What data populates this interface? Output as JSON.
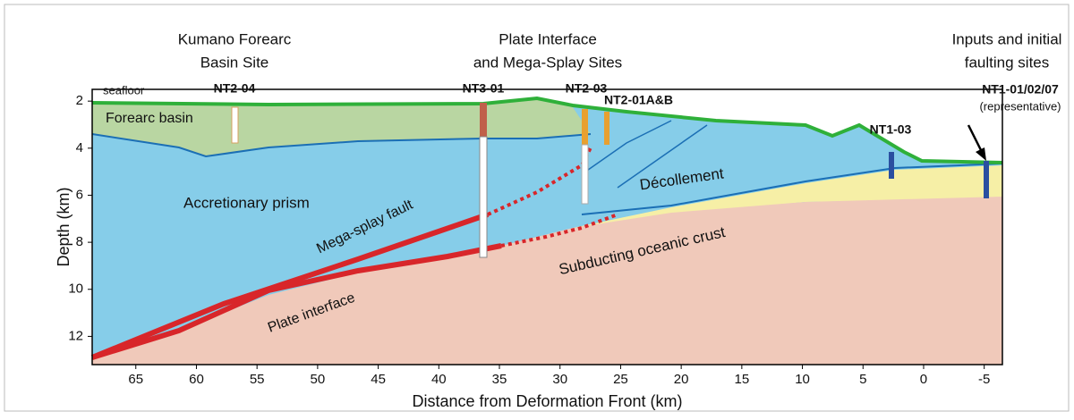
{
  "chart_data": {
    "type": "cross-section",
    "xlabel": "Distance from Deformation Front (km)",
    "ylabel": "Depth (km)",
    "xlim": [
      68.6,
      -6.5
    ],
    "ylim": [
      1.5,
      13.2
    ],
    "xticks": [
      65,
      60,
      55,
      50,
      45,
      40,
      35,
      30,
      25,
      20,
      15,
      10,
      5,
      0,
      -5
    ],
    "yticks": [
      2,
      4,
      6,
      8,
      10,
      12
    ],
    "headers": [
      [
        "Kumano Forearc",
        "Basin Site"
      ],
      [
        "Plate Interface",
        "and Mega-Splay Sites"
      ],
      [
        "Inputs and initial",
        "faulting sites"
      ]
    ],
    "sites": [
      "NT2-04",
      "NT3-01",
      "NT2-03",
      "NT2-01A&B",
      "NT1-03",
      "NT1-01/02/07",
      "(representative)"
    ],
    "labels": [
      "seafloor",
      "Forearc basin",
      "Accretionary prism",
      "Mega-splay fault",
      "Plate interface",
      "Subducting oceanic crust",
      "Décollement"
    ]
  }
}
